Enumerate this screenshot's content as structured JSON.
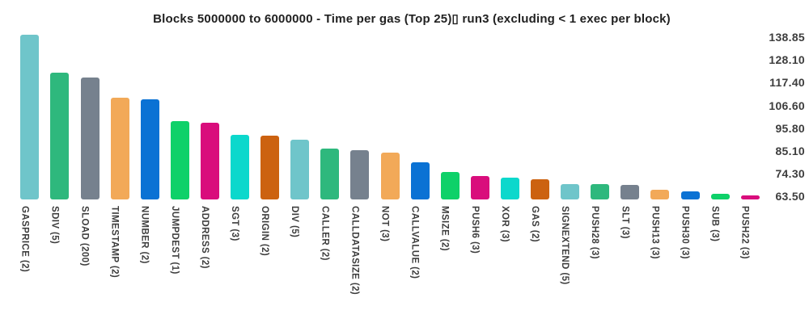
{
  "chart_data": {
    "type": "bar",
    "title": "Blocks 5000000 to 6000000 - Time per gas (Top 25)▯ run3 (excluding < 1 exec per block)",
    "xlabel": "",
    "ylabel": "",
    "grid": false,
    "legend": false,
    "yaxis_side": "right",
    "ylim": [
      62.1,
      141.1
    ],
    "categories": [
      "GASPRICE (2)",
      "SDIV (5)",
      "SLOAD (200)",
      "TIMESTAMP (2)",
      "NUMBER (2)",
      "JUMPDEST (1)",
      "ADDRESS (2)",
      "SGT (3)",
      "ORIGIN (2)",
      "DIV (5)",
      "CALLER (2)",
      "CALLDATASIZE (2)",
      "NOT (3)",
      "CALLVALUE (2)",
      "MSIZE (2)",
      "PUSH6 (3)",
      "XOR (3)",
      "GAS (2)",
      "SIGNEXTEND (5)",
      "PUSH28 (3)",
      "SLT (3)",
      "PUSH13 (3)",
      "PUSH30 (3)",
      "SUB (3)",
      "PUSH22 (3)"
    ],
    "values": [
      139.9,
      122.0,
      119.8,
      110.3,
      109.3,
      99.2,
      98.3,
      92.8,
      92.4,
      90.5,
      86.1,
      85.4,
      84.3,
      79.8,
      75.0,
      73.3,
      72.4,
      71.6,
      69.5,
      69.3,
      69.1,
      66.8,
      65.9,
      64.9,
      64.2
    ],
    "ytick_labels": [
      "138.85",
      "128.10",
      "117.40",
      "106.60",
      "95.80",
      "85.10",
      "74.30",
      "63.50"
    ],
    "palette": [
      "#6fc5ca",
      "#2eb87d",
      "#76818e",
      "#f2a958",
      "#0b72d4",
      "#0ed169",
      "#d90d7c",
      "#0cd8cc",
      "#cc6210"
    ],
    "text_color": "#3d3d3d",
    "title_color": "#212121",
    "background_color": "#ffffff"
  }
}
